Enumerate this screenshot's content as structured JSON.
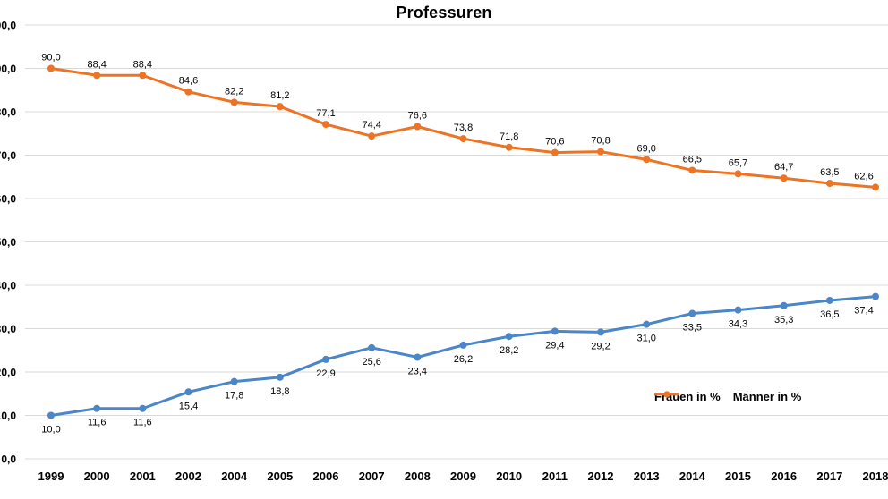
{
  "chart_data": {
    "type": "line",
    "title": "Professuren",
    "categories": [
      "1999",
      "2000",
      "2001",
      "2002",
      "2004",
      "2005",
      "2006",
      "2007",
      "2008",
      "2009",
      "2010",
      "2011",
      "2012",
      "2013",
      "2014",
      "2015",
      "2016",
      "2017",
      "2018"
    ],
    "series": [
      {
        "id": "frauen",
        "name": "Frauen in %",
        "color": "#4a86c8",
        "label_position": "below",
        "values": [
          10.0,
          11.6,
          11.6,
          15.4,
          17.8,
          18.8,
          22.9,
          25.6,
          23.4,
          26.2,
          28.2,
          29.4,
          29.2,
          31.0,
          33.5,
          34.3,
          35.3,
          36.5,
          37.4
        ]
      },
      {
        "id": "maenner",
        "name": "Männer in %",
        "color": "#ed7424",
        "label_position": "above",
        "values": [
          90.0,
          88.4,
          88.4,
          84.6,
          82.2,
          81.2,
          77.1,
          74.4,
          76.6,
          73.8,
          71.8,
          70.6,
          70.8,
          69.0,
          66.5,
          65.7,
          64.7,
          63.5,
          62.6
        ]
      }
    ],
    "xlabel": "",
    "ylabel": "",
    "ylim": [
      0,
      100
    ],
    "ytick_step": 10,
    "decimal_separator": "comma",
    "grid": true,
    "gridline_color": "#d9d9d9",
    "legend_position": "bottom-right",
    "marker_shape": "circle"
  }
}
